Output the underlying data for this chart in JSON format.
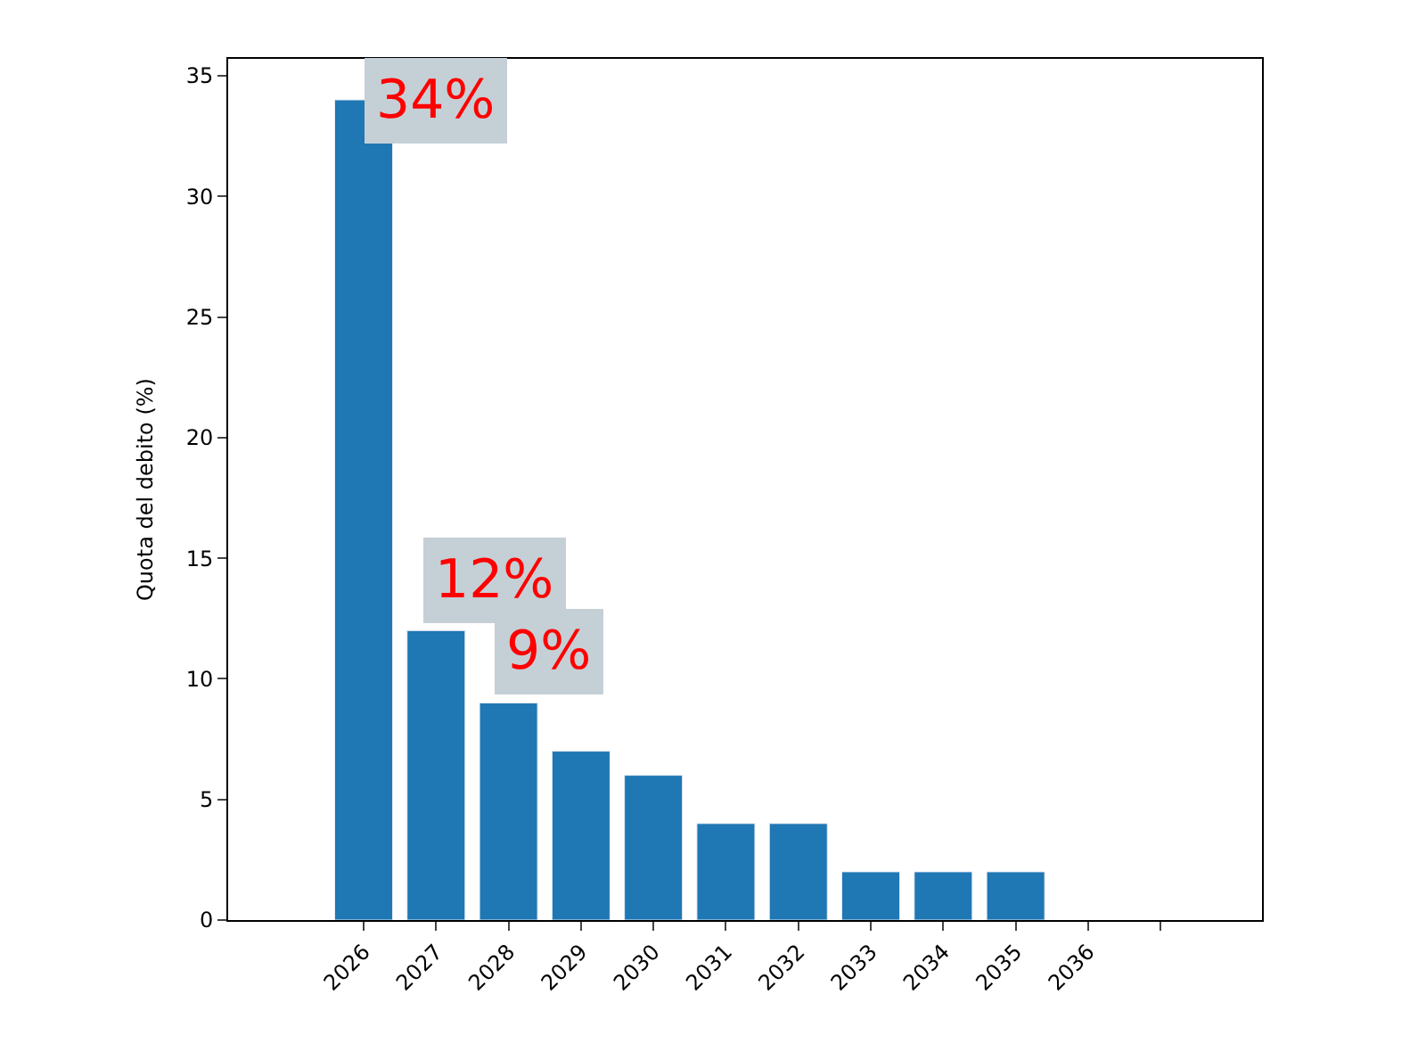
{
  "chart_data": {
    "type": "bar",
    "ylabel": "Quota del debito (%)",
    "categories": [
      "2026",
      "2027",
      "2028",
      "2029",
      "2030",
      "2031",
      "2032",
      "2033",
      "2034",
      "2035",
      "2036",
      null
    ],
    "values": [
      34,
      12,
      9,
      7,
      6,
      4,
      4,
      2,
      2,
      2,
      null,
      null
    ],
    "color": "#1f77b4",
    "ylim": [
      0,
      35.7
    ],
    "yticks": [
      0,
      5,
      10,
      15,
      20,
      25,
      30,
      35
    ],
    "legend": false,
    "annotations": [
      {
        "text": "34%",
        "x": "2026",
        "y": 34
      },
      {
        "text": "12%",
        "x": "2027",
        "y": 12
      },
      {
        "text": "9%",
        "x": "2028",
        "y": 9
      }
    ]
  }
}
